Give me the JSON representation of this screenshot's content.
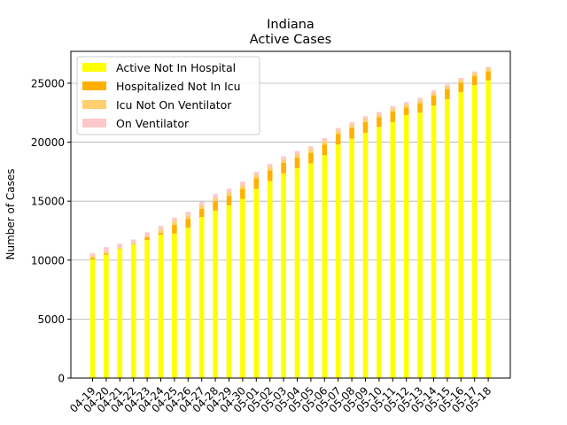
{
  "chart_data": {
    "type": "bar",
    "stacked": true,
    "title": "Indiana",
    "subtitle": "Active Cases",
    "xlabel": "",
    "ylabel": "Number of Cases",
    "ylim": [
      0,
      27700
    ],
    "yticks": [
      0,
      5000,
      10000,
      15000,
      20000,
      25000
    ],
    "grid": "y",
    "legend_position": "top-left",
    "categories": [
      "04-19",
      "04-20",
      "04-21",
      "04-22",
      "04-23",
      "04-24",
      "04-25",
      "04-26",
      "04-27",
      "04-28",
      "04-29",
      "04-30",
      "05-01",
      "05-02",
      "05-03",
      "05-04",
      "05-05",
      "05-06",
      "05-07",
      "05-08",
      "05-09",
      "05-10",
      "05-11",
      "05-12",
      "05-13",
      "05-14",
      "05-15",
      "05-16",
      "05-17",
      "05-18"
    ],
    "series": [
      {
        "name": "Active Not In Hospital",
        "color": "#ffff00",
        "values": [
          10050,
          10450,
          10950,
          11300,
          11700,
          12150,
          12250,
          12750,
          13650,
          14200,
          14650,
          15200,
          16050,
          16700,
          17350,
          17800,
          18200,
          18900,
          19800,
          20300,
          20800,
          21300,
          21700,
          22300,
          22500,
          23100,
          23650,
          24250,
          24850,
          25250
        ]
      },
      {
        "name": "Hospitalized Not In Icu",
        "color": "#ffb000",
        "values": [
          150,
          100,
          0,
          0,
          250,
          150,
          750,
          750,
          700,
          800,
          800,
          850,
          900,
          900,
          900,
          900,
          900,
          900,
          900,
          900,
          900,
          800,
          900,
          650,
          800,
          850,
          850,
          800,
          750,
          750
        ]
      },
      {
        "name": "Icu Not On Ventilator",
        "color": "#ffd070",
        "values": [
          150,
          150,
          100,
          150,
          100,
          300,
          300,
          300,
          300,
          300,
          300,
          300,
          300,
          300,
          300,
          300,
          300,
          300,
          300,
          300,
          300,
          250,
          250,
          250,
          250,
          250,
          250,
          250,
          250,
          250
        ]
      },
      {
        "name": "On Ventilator",
        "color": "#ffc8c8",
        "values": [
          250,
          400,
          350,
          300,
          300,
          300,
          300,
          300,
          300,
          300,
          300,
          300,
          250,
          250,
          250,
          250,
          250,
          250,
          200,
          200,
          200,
          200,
          200,
          200,
          200,
          200,
          150,
          150,
          150,
          150
        ]
      }
    ]
  }
}
